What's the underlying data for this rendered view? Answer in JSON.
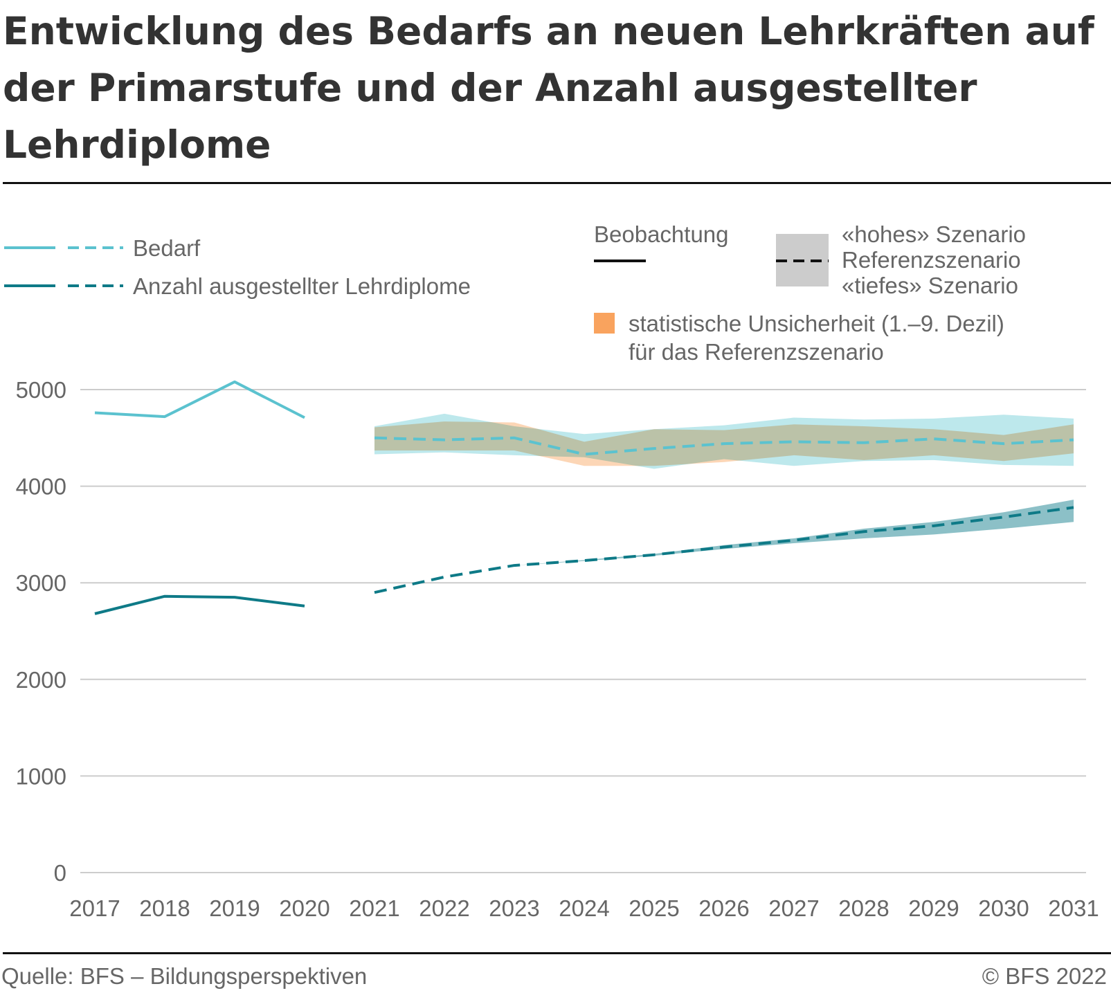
{
  "title": "Entwicklung des Bedarfs an neuen Lehrkräften auf der Primarstufe und der Anzahl ausgestellter Lehrdiplome",
  "source": "Quelle: BFS – Bildungsperspektiven",
  "copyright": "© BFS 2022",
  "colors": {
    "bedarf": "#5bc2cf",
    "bedarf_band": "#bde8ec",
    "diplome": "#0e7a87",
    "diplome_band": "#8cc0c7",
    "uncertainty": "#f9a35e",
    "uncertainty_overlap": "#d6c6ab",
    "scenario_grey": "#cccccc",
    "grid": "#cccccc",
    "axis_text": "#666666"
  },
  "legend": {
    "series": [
      "Bedarf",
      "Anzahl ausgestellter Lehrdiplome"
    ],
    "observation": "Beobachtung",
    "scenarios": [
      "«hohes» Szenario",
      "Referenzszenario",
      "«tiefes» Szenario"
    ],
    "uncertainty": [
      "statistische Unsicherheit (1.–9. Dezil)",
      "für das Referenzszenario"
    ]
  },
  "chart_data": {
    "type": "line",
    "x": [
      2017,
      2018,
      2019,
      2020,
      2021,
      2022,
      2023,
      2024,
      2025,
      2026,
      2027,
      2028,
      2029,
      2030,
      2031
    ],
    "ylim": [
      0,
      5000
    ],
    "yticks": [
      0,
      1000,
      2000,
      3000,
      4000,
      5000
    ],
    "grid": true,
    "series": [
      {
        "name": "Bedarf",
        "observed": {
          "x": [
            2017,
            2018,
            2019,
            2020
          ],
          "values": [
            4760,
            4720,
            5080,
            4710
          ]
        },
        "reference": {
          "x": [
            2021,
            2022,
            2023,
            2024,
            2025,
            2026,
            2027,
            2028,
            2029,
            2030,
            2031
          ],
          "values": [
            4500,
            4480,
            4500,
            4330,
            4390,
            4440,
            4460,
            4450,
            4490,
            4440,
            4480
          ]
        },
        "high": [
          4620,
          4750,
          4620,
          4540,
          4590,
          4630,
          4710,
          4690,
          4700,
          4740,
          4700
        ],
        "low": [
          4330,
          4350,
          4320,
          4300,
          4180,
          4280,
          4210,
          4260,
          4270,
          4220,
          4210
        ],
        "uncertainty_upper": [
          4610,
          4670,
          4660,
          4460,
          4590,
          4580,
          4640,
          4620,
          4590,
          4530,
          4640
        ],
        "uncertainty_lower": [
          4370,
          4370,
          4370,
          4210,
          4210,
          4250,
          4320,
          4270,
          4320,
          4260,
          4340
        ]
      },
      {
        "name": "Anzahl ausgestellter Lehrdiplome",
        "observed": {
          "x": [
            2017,
            2018,
            2019,
            2020
          ],
          "values": [
            2680,
            2860,
            2850,
            2760
          ]
        },
        "reference": {
          "x": [
            2021,
            2022,
            2023,
            2024,
            2025,
            2026,
            2027,
            2028,
            2029,
            2030,
            2031
          ],
          "values": [
            2900,
            3060,
            3180,
            3230,
            3290,
            3370,
            3440,
            3530,
            3590,
            3680,
            3780
          ]
        },
        "high": [
          2900,
          3060,
          3180,
          3235,
          3300,
          3390,
          3460,
          3560,
          3630,
          3730,
          3860
        ],
        "low": [
          2900,
          3060,
          3180,
          3225,
          3280,
          3350,
          3410,
          3460,
          3500,
          3560,
          3630
        ]
      }
    ]
  }
}
